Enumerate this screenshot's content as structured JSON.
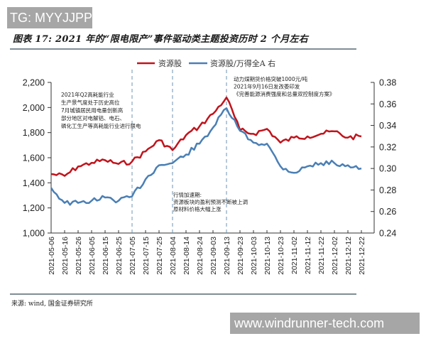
{
  "watermark_top": "TG: MYYJJPP",
  "figure": {
    "title": "图表 17: 2021 年的“限电限产”事件驱动类主题投资历时 2 个月左右",
    "source": "来源: wind, 国金证券研究所"
  },
  "watermark_bottom": "www.windrunner-tech.com",
  "legend": [
    {
      "label": "资源股",
      "color": "#c0141c"
    },
    {
      "label": "资源股/万得全A 右",
      "color": "#4a7fb5"
    }
  ],
  "annotations": [
    {
      "lines": [
        "2021年Q2高耗能行业",
        "生产景气度处于历史高位",
        "7月城镇居民用电量创新高",
        "部分地区对电解铝、电石、",
        "磷化工生产等高耗能行业进行限电"
      ]
    },
    {
      "lines": [
        "行情加速期:",
        "资源板块的盈利预测不断被上调",
        "原材料价格大幅上涨"
      ]
    },
    {
      "lines": [
        "动力煤期货价格突破1000元/吨",
        "2021年9月16日发改委印发",
        "《完善能源消费强度和总量双控制度方案》"
      ]
    }
  ],
  "chart_data": {
    "type": "line",
    "title": "图表 17: 2021 年的“限电限产”事件驱动类主题投资历时 2 个月左右",
    "xlabel": "",
    "ylabel": "",
    "ylim": [
      1000,
      2200
    ],
    "y2lim": [
      0.24,
      0.38
    ],
    "grid": false,
    "legend_position": "top",
    "left_ticks": [
      "1,000",
      "1,200",
      "1,400",
      "1,600",
      "1,800",
      "2,000",
      "2,200"
    ],
    "right_ticks": [
      "0.24",
      "0.26",
      "0.28",
      "0.30",
      "0.32",
      "0.34",
      "0.36",
      "0.38"
    ],
    "categories": [
      "2021-05-06",
      "2021-05-16",
      "2021-05-26",
      "2021-06-05",
      "2021-06-15",
      "2021-06-25",
      "2021-07-05",
      "2021-07-15",
      "2021-07-25",
      "2021-08-04",
      "2021-08-14",
      "2021-08-24",
      "2021-09-03",
      "2021-09-13",
      "2021-09-23",
      "2021-10-03",
      "2021-10-13",
      "2021-10-23",
      "2021-11-02",
      "2021-11-12",
      "2021-11-22",
      "2021-12-02",
      "2021-12-12",
      "2021-12-22"
    ],
    "vlines": [
      "2021-07-05",
      "2021-08-04",
      "2021-09-13"
    ],
    "series": [
      {
        "name": "资源股",
        "axis": "left",
        "color": "#c0141c",
        "values": [
          1470,
          1455,
          1530,
          1560,
          1580,
          1550,
          1570,
          1650,
          1740,
          1660,
          1780,
          1850,
          1950,
          2080,
          1820,
          1790,
          1830,
          1720,
          1760,
          1770,
          1790,
          1810,
          1760,
          1770
        ]
      },
      {
        "name": "资源股/万得全A 右",
        "axis": "right",
        "color": "#4a7fb5",
        "values": [
          0.282,
          0.268,
          0.268,
          0.27,
          0.273,
          0.27,
          0.274,
          0.29,
          0.303,
          0.305,
          0.313,
          0.323,
          0.338,
          0.356,
          0.335,
          0.324,
          0.323,
          0.302,
          0.296,
          0.302,
          0.305,
          0.305,
          0.303,
          0.3
        ]
      }
    ]
  }
}
